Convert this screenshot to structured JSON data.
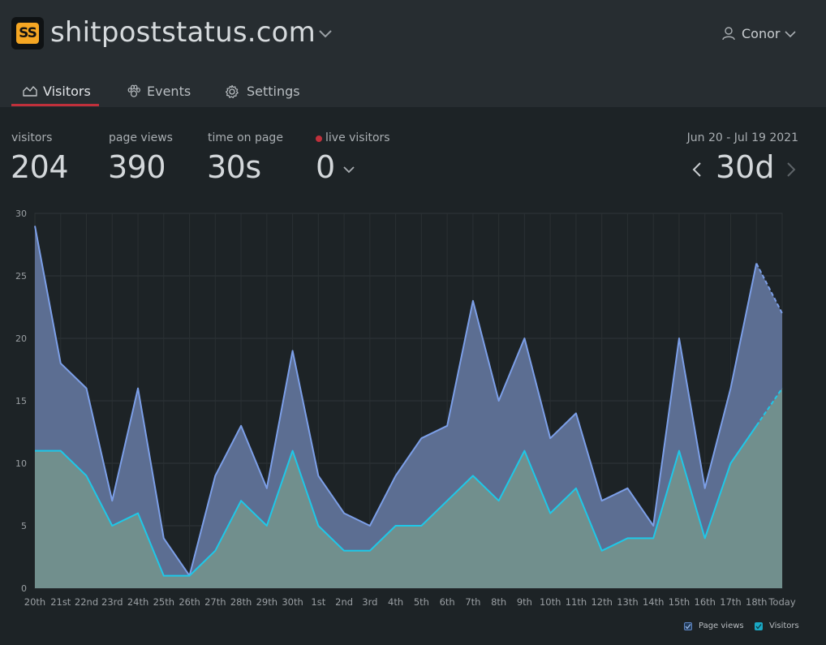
{
  "site": {
    "logo_text": "SS",
    "title": "shitpoststatus.com"
  },
  "user": {
    "name": "Conor"
  },
  "tabs": [
    {
      "label": "Visitors",
      "icon": "chart-area-icon",
      "active": true
    },
    {
      "label": "Events",
      "icon": "paw-icon",
      "active": false
    },
    {
      "label": "Settings",
      "icon": "gear-icon",
      "active": false
    }
  ],
  "stats": {
    "visitors": {
      "label": "visitors",
      "value": "204"
    },
    "page_views": {
      "label": "page views",
      "value": "390"
    },
    "time_on_page": {
      "label": "time on page",
      "value": "30s"
    },
    "live_visitors": {
      "label": "live visitors",
      "value": "0"
    }
  },
  "period": {
    "range": "Jun 20 - Jul 19 2021",
    "value": "30d"
  },
  "colors": {
    "accent": "#c0303b",
    "page_views_line": "#7c9fe8",
    "page_views_fill": "#5c6e92",
    "visitors_line": "#1ec8e8",
    "visitors_fill": "#718f8d"
  },
  "chart_data": {
    "type": "area",
    "x": [
      "20th",
      "21st",
      "22nd",
      "23rd",
      "24th",
      "25th",
      "26th",
      "27th",
      "28th",
      "29th",
      "30th",
      "1st",
      "2nd",
      "3rd",
      "4th",
      "5th",
      "6th",
      "7th",
      "8th",
      "9th",
      "10th",
      "11th",
      "12th",
      "13th",
      "14th",
      "15th",
      "16th",
      "17th",
      "18th",
      "Today"
    ],
    "ylim": [
      0,
      30
    ],
    "yticks": [
      0,
      5,
      10,
      15,
      20,
      25,
      30
    ],
    "grid": true,
    "legend_position": "bottom-right",
    "series": [
      {
        "name": "Page views",
        "values": [
          29,
          18,
          16,
          7,
          16,
          4,
          1,
          9,
          13,
          8,
          19,
          9,
          6,
          5,
          9,
          12,
          13,
          23,
          15,
          20,
          12,
          14,
          7,
          8,
          5,
          20,
          8,
          16,
          26,
          22
        ]
      },
      {
        "name": "Visitors",
        "values": [
          11,
          11,
          9,
          5,
          6,
          1,
          1,
          3,
          7,
          5,
          11,
          5,
          3,
          3,
          5,
          5,
          7,
          9,
          7,
          11,
          6,
          8,
          3,
          4,
          4,
          11,
          4,
          10,
          13,
          16
        ]
      }
    ]
  }
}
